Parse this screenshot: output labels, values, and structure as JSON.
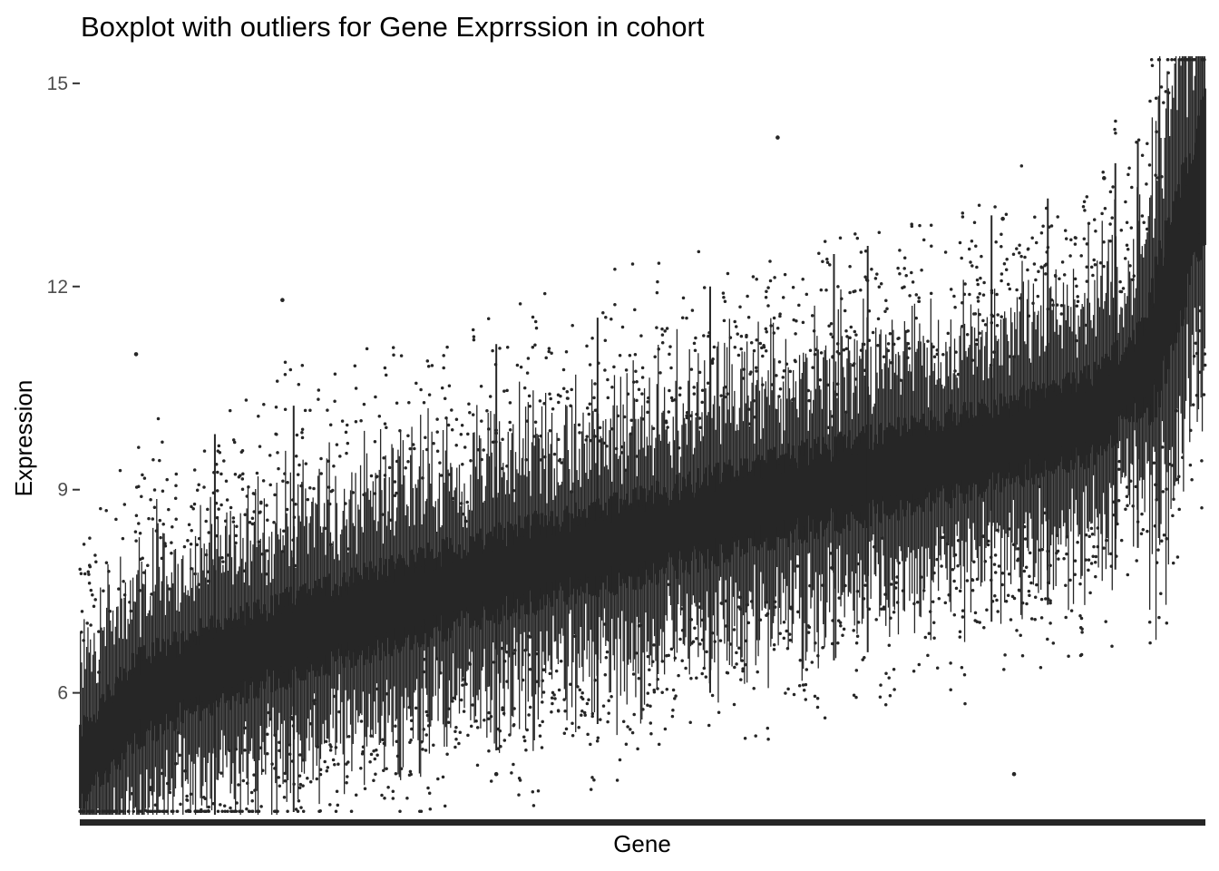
{
  "chart_data": {
    "type": "boxplot",
    "title": "Boxplot with outliers for Gene Exprrssion in cohort",
    "xlabel": "Gene",
    "ylabel": "Expression",
    "ylim": [
      4.2,
      15.4
    ],
    "yticks": [
      6,
      9,
      12,
      15
    ],
    "ytick_labels": [
      "6",
      "9",
      "12",
      "15"
    ],
    "x_tick_labels": "none (one box per gene, genes sorted by median)",
    "grid": false,
    "color": "#262626",
    "median_profile": {
      "gene_rank_fraction": [
        0.0,
        0.05,
        0.1,
        0.2,
        0.3,
        0.4,
        0.5,
        0.6,
        0.7,
        0.8,
        0.9,
        0.95,
        1.0
      ],
      "median": [
        4.9,
        5.9,
        6.3,
        6.9,
        7.4,
        7.9,
        8.3,
        8.8,
        9.2,
        9.6,
        10.1,
        10.9,
        13.8
      ]
    },
    "highlighted_outliers": [
      {
        "gene_rank_fraction": 0.05,
        "value": 11.0
      },
      {
        "gene_rank_fraction": 0.18,
        "value": 11.8
      },
      {
        "gene_rank_fraction": 0.37,
        "value": 4.8
      },
      {
        "gene_rank_fraction": 0.62,
        "value": 14.2
      },
      {
        "gene_rank_fraction": 0.82,
        "value": 13.0
      },
      {
        "gene_rank_fraction": 0.83,
        "value": 4.8
      },
      {
        "gene_rank_fraction": 0.91,
        "value": 13.6
      }
    ]
  }
}
